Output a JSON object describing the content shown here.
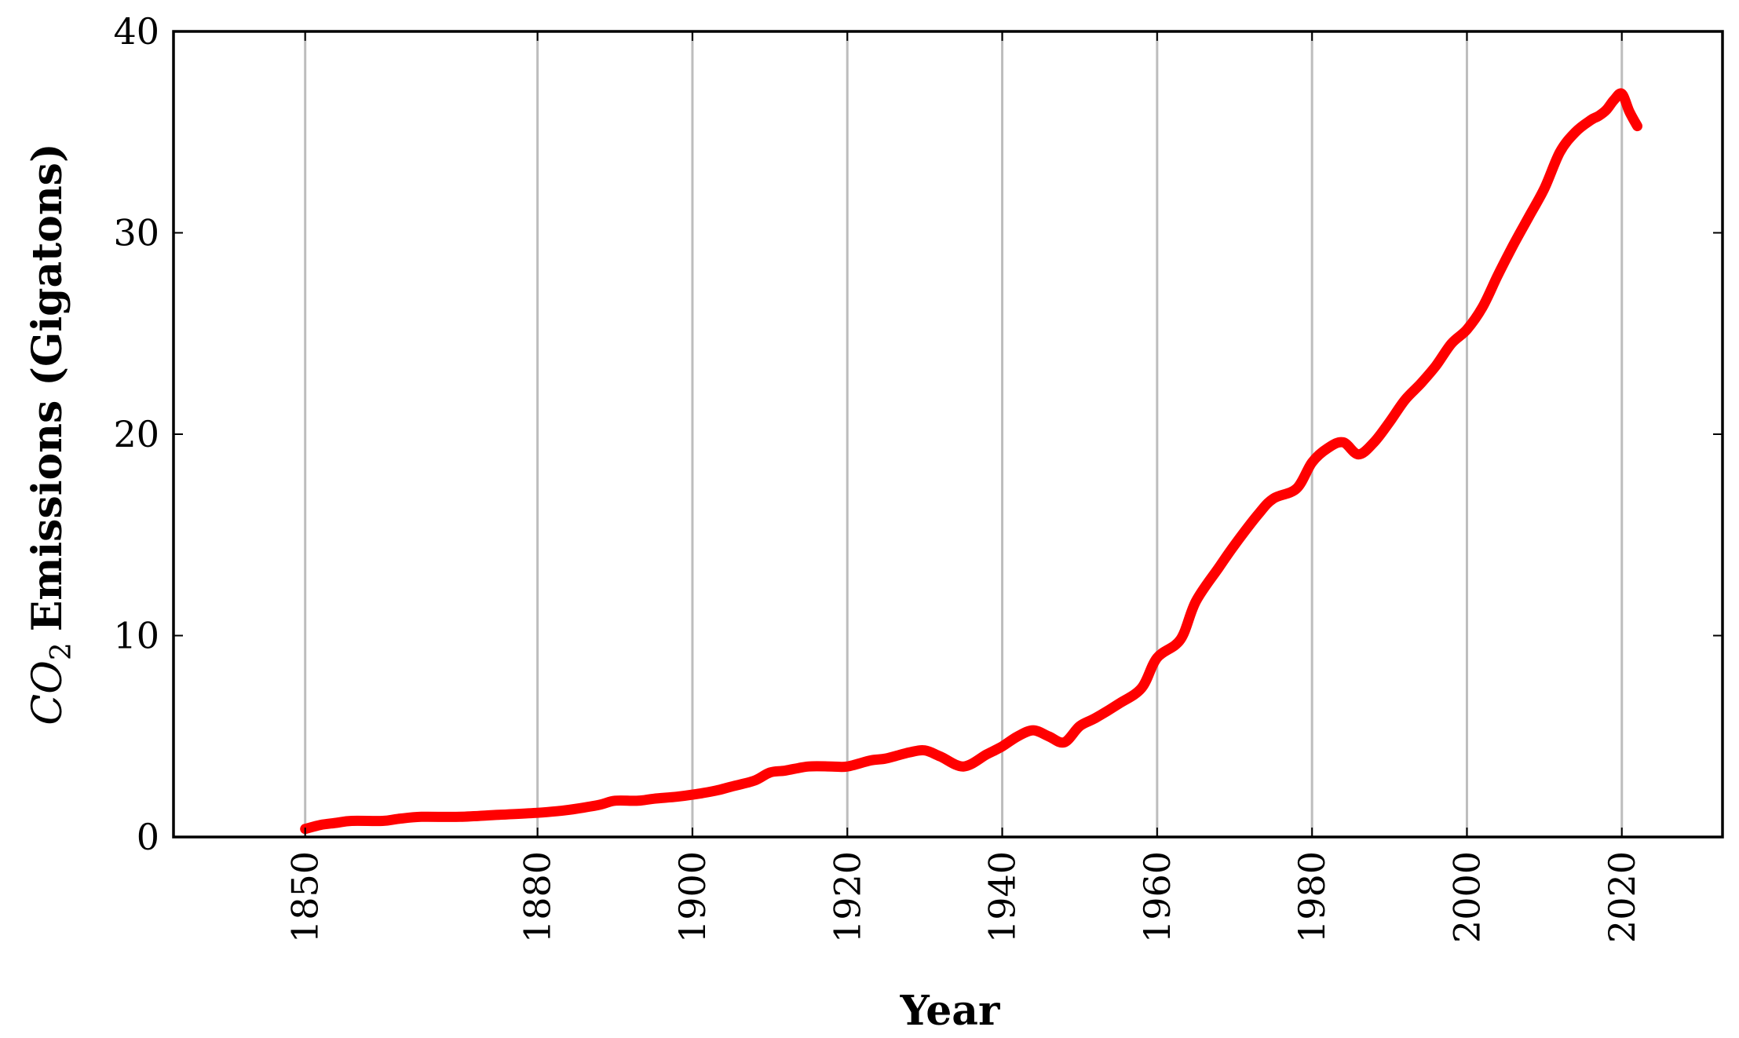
{
  "chart_data": {
    "type": "line",
    "title": "",
    "xlabel": "Year",
    "ylabel": {
      "symbol_main": "CO",
      "symbol_sub": "2",
      "rest": "Emissions (Gigatons)"
    },
    "xlim": [
      1833,
      2033
    ],
    "ylim": [
      0,
      40
    ],
    "x_ticks": [
      1850,
      1880,
      1900,
      1920,
      1940,
      1960,
      1980,
      2000,
      2020
    ],
    "y_ticks": [
      0,
      10,
      20,
      30,
      40
    ],
    "grid": "vertical",
    "legend": "none",
    "series": [
      {
        "color": "#ff0000",
        "x": [
          1850,
          1852,
          1854,
          1856,
          1860,
          1862,
          1865,
          1870,
          1875,
          1880,
          1883,
          1885,
          1888,
          1890,
          1893,
          1895,
          1898,
          1900,
          1903,
          1905,
          1908,
          1910,
          1912,
          1915,
          1918,
          1920,
          1923,
          1925,
          1928,
          1930,
          1932,
          1935,
          1938,
          1940,
          1942,
          1944,
          1946,
          1948,
          1950,
          1952,
          1955,
          1958,
          1960,
          1963,
          1965,
          1968,
          1970,
          1973,
          1975,
          1978,
          1980,
          1982,
          1984,
          1986,
          1988,
          1990,
          1992,
          1994,
          1996,
          1998,
          2000,
          2002,
          2004,
          2006,
          2008,
          2010,
          2012,
          2014,
          2016,
          2017,
          2018,
          2019,
          2020,
          2021,
          2022
        ],
        "y": [
          0.4,
          0.6,
          0.7,
          0.8,
          0.8,
          0.9,
          1.0,
          1.0,
          1.1,
          1.2,
          1.3,
          1.4,
          1.6,
          1.8,
          1.8,
          1.9,
          2.0,
          2.1,
          2.3,
          2.5,
          2.8,
          3.2,
          3.3,
          3.5,
          3.5,
          3.5,
          3.8,
          3.9,
          4.2,
          4.3,
          4.0,
          3.5,
          4.1,
          4.5,
          5.0,
          5.3,
          5.0,
          4.7,
          5.5,
          5.9,
          6.6,
          7.4,
          8.9,
          9.8,
          11.7,
          13.4,
          14.5,
          16.0,
          16.8,
          17.3,
          18.6,
          19.3,
          19.6,
          19.0,
          19.6,
          20.6,
          21.7,
          22.5,
          23.4,
          24.5,
          25.2,
          26.3,
          27.9,
          29.4,
          30.8,
          32.2,
          34.0,
          35.0,
          35.6,
          35.8,
          36.1,
          36.6,
          36.9,
          36.0,
          35.3
        ]
      }
    ]
  }
}
